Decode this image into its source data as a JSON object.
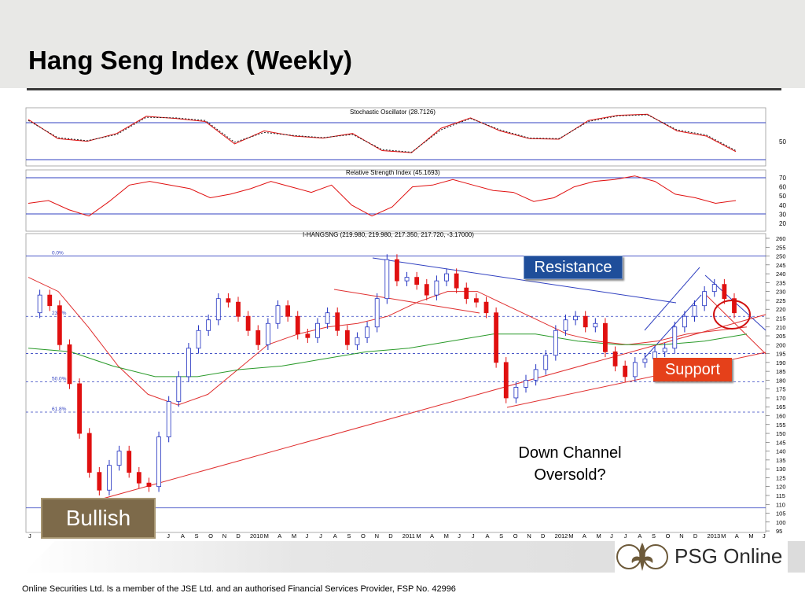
{
  "slide": {
    "title": "Hang Seng Index (Weekly)",
    "disclaimer": "Online Securities Ltd. Is a member of the JSE Ltd. and an authorised Financial Services Provider, FSP No. 42996",
    "logo_text": "PSG Online"
  },
  "annotations": {
    "resistance": "Resistance",
    "support": "Support",
    "bullish": "Bullish",
    "note_line1": "Down Channel",
    "note_line2": "Oversold?"
  },
  "colors": {
    "resistance_box": "#1f4e9a",
    "support_box": "#e5401a",
    "bullish_box": "#7d6a4a",
    "guide_lines": "#3040c0",
    "moving_avg_fast": "#e03030",
    "moving_avg_slow": "#2a9a2a",
    "candle_up": "#2030c0",
    "candle_down": "#e01010"
  },
  "chart_data": [
    {
      "type": "line",
      "title": "Stochastic Oscillator (28.7126)",
      "y_ticks": [
        "50"
      ],
      "guide_levels": [
        20,
        80
      ],
      "series": [
        {
          "name": "%K",
          "style": "solid",
          "values": [
            82,
            45,
            40,
            55,
            88,
            84,
            78,
            35,
            60,
            50,
            46,
            55,
            22,
            18,
            65,
            85,
            60,
            45,
            44,
            80,
            90,
            92,
            60,
            50,
            20
          ]
        },
        {
          "name": "%D",
          "style": "dotted",
          "values": [
            80,
            47,
            41,
            53,
            86,
            85,
            80,
            38,
            57,
            51,
            47,
            53,
            24,
            19,
            62,
            84,
            62,
            46,
            45,
            78,
            89,
            91,
            62,
            52,
            22
          ]
        }
      ]
    },
    {
      "type": "line",
      "title": "Relative Strength Index (45.1693)",
      "y_ticks": [
        "70",
        "60",
        "50",
        "40",
        "30",
        "20"
      ],
      "guide_levels": [
        30,
        70
      ],
      "series": [
        {
          "name": "",
          "values": [
            42,
            45,
            35,
            28,
            44,
            62,
            66,
            62,
            58,
            48,
            52,
            58,
            66,
            60,
            54,
            62,
            40,
            28,
            38,
            60,
            62,
            68,
            62,
            56,
            54,
            44,
            48,
            60,
            66,
            68,
            72,
            66,
            52,
            48,
            42,
            45
          ]
        }
      ]
    },
    {
      "type": "candlestick",
      "title": "I-HANGSNG (219.980, 219.980, 217.350, 217.720, -3.17000)",
      "y_ticks": [
        "260",
        "255",
        "250",
        "245",
        "240",
        "235",
        "230",
        "225",
        "220",
        "215",
        "210",
        "205",
        "200",
        "195",
        "190",
        "185",
        "180",
        "175",
        "170",
        "165",
        "160",
        "155",
        "150",
        "145",
        "140",
        "135",
        "130",
        "125",
        "120",
        "115",
        "110",
        "105",
        "100",
        "95"
      ],
      "y_range": [
        95,
        260
      ],
      "x_labels": [
        "J",
        "",
        "",
        "",
        "",
        "",
        "",
        "",
        "",
        "J",
        "J",
        "A",
        "S",
        "O",
        "N",
        "D",
        "2010",
        "M",
        "A",
        "M",
        "J",
        "J",
        "A",
        "S",
        "O",
        "N",
        "D",
        "2011",
        "M",
        "A",
        "M",
        "J",
        "J",
        "A",
        "S",
        "O",
        "N",
        "D",
        "2012",
        "M",
        "A",
        "M",
        "J",
        "J",
        "A",
        "S",
        "O",
        "N",
        "D",
        "2013",
        "M",
        "A",
        "M",
        "J"
      ],
      "fib_levels": [
        {
          "label": "0.0%",
          "value": 250
        },
        {
          "label": "23.6%",
          "value": 216
        },
        {
          "label": "",
          "value": 195
        },
        {
          "label": "50.0%",
          "value": 179
        },
        {
          "label": "61.8%",
          "value": 162
        },
        {
          "label": "",
          "value": 108
        }
      ],
      "close_values": [
        218,
        228,
        222,
        200,
        178,
        150,
        128,
        118,
        132,
        140,
        128,
        122,
        120,
        148,
        168,
        182,
        198,
        208,
        214,
        226,
        224,
        216,
        208,
        200,
        212,
        222,
        216,
        206,
        204,
        212,
        218,
        208,
        200,
        204,
        210,
        226,
        248,
        236,
        238,
        234,
        228,
        236,
        240,
        232,
        226,
        224,
        218,
        190,
        170,
        176,
        180,
        186,
        194,
        208,
        214,
        216,
        210,
        212,
        196,
        188,
        182,
        190,
        192,
        196,
        198,
        210,
        216,
        222,
        230,
        234,
        226,
        218
      ],
      "moving_averages": [
        {
          "name": "",
          "values": [
            238,
            230,
            210,
            188,
            172,
            166,
            172,
            186,
            200,
            206,
            210,
            212,
            216,
            224,
            230,
            230,
            222,
            214,
            206,
            202,
            200,
            202,
            206,
            208,
            210
          ]
        },
        {
          "name": "",
          "values": [
            198,
            196,
            188,
            182,
            182,
            186,
            188,
            192,
            196,
            198,
            202,
            206,
            206,
            202,
            200,
            200,
            202,
            206
          ]
        }
      ]
    }
  ]
}
